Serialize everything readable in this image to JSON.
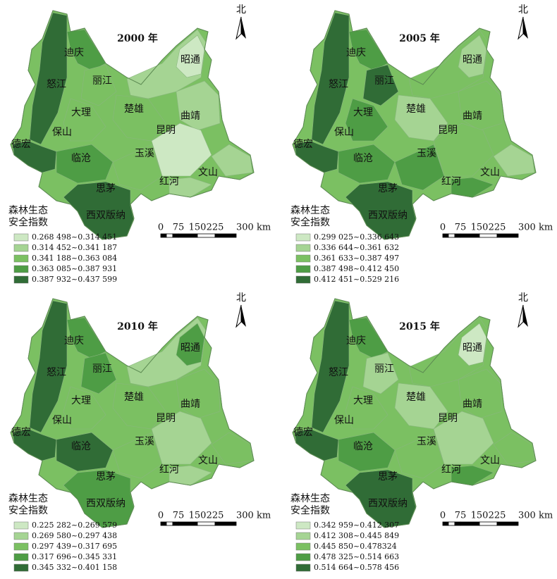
{
  "panels": [
    {
      "title": "2000 年",
      "north": "北",
      "legend_title": [
        "森林生态",
        "安全指数"
      ],
      "legend": [
        {
          "label": "0.268 498~0.314 451",
          "color": "#cde8c3"
        },
        {
          "label": "0.314 452~0.341 187",
          "color": "#a5d493"
        },
        {
          "label": "0.341 188~0.363 084",
          "color": "#7bc062"
        },
        {
          "label": "0.363 085~0.387 931",
          "color": "#4e9d45"
        },
        {
          "label": "0.387 932~0.437 599",
          "color": "#306c36"
        }
      ],
      "labels": [
        "迪庆",
        "怒江",
        "丽江",
        "大理",
        "楚雄",
        "曲靖",
        "保山",
        "昆明",
        "德宏",
        "临沧",
        "玉溪",
        "红河",
        "文山",
        "思茅",
        "西双版纳",
        "昭通"
      ],
      "scale": [
        "0",
        "75",
        "150",
        "225",
        "300 km"
      ]
    },
    {
      "title": "2005 年",
      "north": "北",
      "legend_title": [
        "森林生态",
        "安全指数"
      ],
      "legend": [
        {
          "label": "0.299 025~0.336 643",
          "color": "#cde8c3"
        },
        {
          "label": "0.336 644~0.361 632",
          "color": "#a5d493"
        },
        {
          "label": "0.361 633~0.387 497",
          "color": "#7bc062"
        },
        {
          "label": "0.387 498~0.412 450",
          "color": "#4e9d45"
        },
        {
          "label": "0.412 451~0.529 216",
          "color": "#306c36"
        }
      ],
      "labels": [
        "迪庆",
        "怒江",
        "丽江",
        "大理",
        "楚雄",
        "曲靖",
        "保山",
        "昆明",
        "德宏",
        "临沧",
        "玉溪",
        "红河",
        "文山",
        "思茅",
        "西双版纳",
        "昭通"
      ],
      "scale": [
        "0",
        "75",
        "150",
        "225",
        "300 km"
      ]
    },
    {
      "title": "2010 年",
      "north": "北",
      "legend_title": [
        "森林生态",
        "安全指数"
      ],
      "legend": [
        {
          "label": "0.225 282~0.269 579",
          "color": "#cde8c3"
        },
        {
          "label": "0.269 580~0.297 438",
          "color": "#a5d493"
        },
        {
          "label": "0.297 439~0.317 695",
          "color": "#7bc062"
        },
        {
          "label": "0.317 696~0.345 331",
          "color": "#4e9d45"
        },
        {
          "label": "0.345 332~0.401 158",
          "color": "#306c36"
        }
      ],
      "labels": [
        "迪庆",
        "怒江",
        "丽江",
        "大理",
        "楚雄",
        "曲靖",
        "保山",
        "昆明",
        "德宏",
        "临沧",
        "玉溪",
        "红河",
        "文山",
        "思茅",
        "西双版纳",
        "昭通"
      ],
      "scale": [
        "0",
        "75",
        "150",
        "225",
        "300 km"
      ]
    },
    {
      "title": "2015 年",
      "north": "北",
      "legend_title": [
        "森林生态",
        "安全指数"
      ],
      "legend": [
        {
          "label": "0.342 959~0.412 307",
          "color": "#cde8c3"
        },
        {
          "label": "0.412 308~0.445 849",
          "color": "#a5d493"
        },
        {
          "label": "0.445 850~0.478324",
          "color": "#7bc062"
        },
        {
          "label": "0.478 325~0.514 663",
          "color": "#4e9d45"
        },
        {
          "label": "0.514 664~0.578 456",
          "color": "#306c36"
        }
      ],
      "labels": [
        "迪庆",
        "怒江",
        "丽江",
        "大理",
        "楚雄",
        "曲靖",
        "保山",
        "昆明",
        "德宏",
        "临沧",
        "玉溪",
        "红河",
        "文山",
        "思茅",
        "西双版纳",
        "昭通"
      ],
      "scale": [
        "0",
        "75",
        "150",
        "225",
        "300 km"
      ]
    }
  ]
}
